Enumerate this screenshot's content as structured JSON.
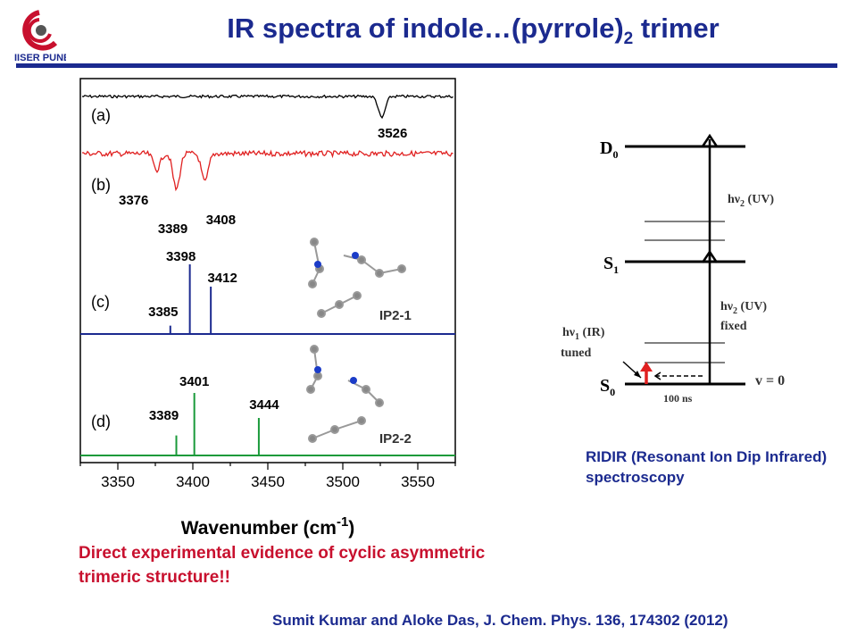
{
  "header": {
    "title": "IR spectra of indole…(pyrrole)",
    "title_subscript": "2",
    "title_suffix": " trimer",
    "logo_text": "IISER PUNE",
    "accent_color": "#1b2a8f"
  },
  "chart_data": {
    "type": "line",
    "xlabel": "Wavenumber (cm",
    "xlabel_superscript": "-1",
    "xlabel_suffix": ")",
    "xlim": [
      3325,
      3575
    ],
    "xticks": [
      3350,
      3400,
      3450,
      3500,
      3550
    ],
    "panels": [
      {
        "label": "(a)",
        "kind": "experimental",
        "color": "#000000",
        "dips": [
          {
            "x": 3526,
            "depth": 1.0
          }
        ],
        "peak_labels": [
          "3526"
        ]
      },
      {
        "label": "(b)",
        "kind": "experimental",
        "color": "#e02020",
        "dips": [
          {
            "x": 3376,
            "depth": 0.45
          },
          {
            "x": 3389,
            "depth": 1.0
          },
          {
            "x": 3408,
            "depth": 0.8
          }
        ],
        "peak_labels": [
          "3376",
          "3389",
          "3408"
        ]
      },
      {
        "label": "(c)",
        "kind": "calculated",
        "color": "#1b2a8f",
        "structure_label": "IP2-1",
        "sticks": [
          {
            "x": 3385,
            "height": 0.12
          },
          {
            "x": 3398,
            "height": 1.0
          },
          {
            "x": 3412,
            "height": 0.68
          }
        ],
        "peak_labels": [
          "3385",
          "3398",
          "3412"
        ]
      },
      {
        "label": "(d)",
        "kind": "calculated",
        "color": "#1a9a3a",
        "structure_label": "IP2-2",
        "sticks": [
          {
            "x": 3389,
            "height": 0.32
          },
          {
            "x": 3401,
            "height": 1.0
          },
          {
            "x": 3444,
            "height": 0.6
          }
        ],
        "peak_labels": [
          "3389",
          "3401",
          "3444"
        ]
      }
    ]
  },
  "energy_diagram": {
    "levels": [
      {
        "label": "D",
        "sub": "0"
      },
      {
        "label": "S",
        "sub": "1"
      },
      {
        "label": "S",
        "sub": "0"
      }
    ],
    "uv_label": "hν",
    "uv_label_sub": "2",
    "uv_label_suffix": " (UV)",
    "uv_fixed_suffix": " (UV)",
    "uv_fixed_line2": "fixed",
    "ir_label": "hν",
    "ir_label_sub": "1",
    "ir_label_suffix": " (IR)",
    "ir_line2": "tuned",
    "v0_label": "v = 0",
    "delay_label": "100 ns"
  },
  "captions": {
    "ridir": "RIDIR (Resonant Ion Dip Infrared) spectroscopy",
    "evidence": "Direct experimental evidence of cyclic asymmetric trimeric structure!!",
    "citation": "Sumit Kumar and Aloke Das, J. Chem. Phys. 136, 174302 (2012)"
  }
}
